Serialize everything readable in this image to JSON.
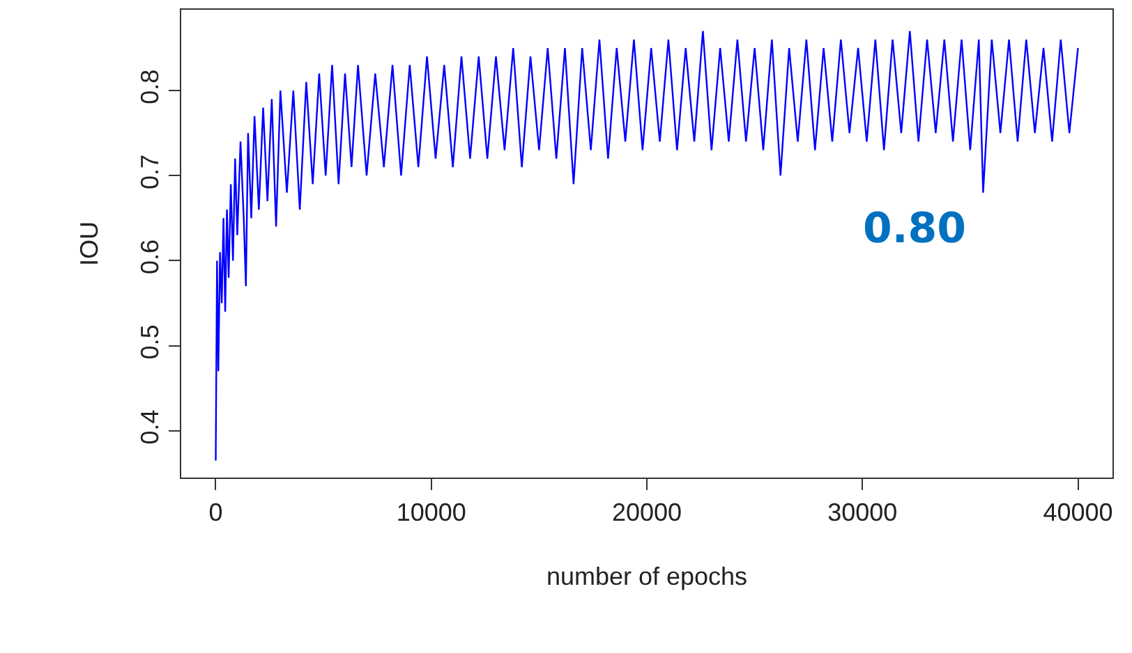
{
  "chart_data": {
    "type": "line",
    "xlabel": "number of epochs",
    "ylabel": "IOU",
    "annotations": [
      "0.80"
    ],
    "xlim": [
      -1600,
      41600
    ],
    "ylim": [
      0.345,
      0.895
    ],
    "xticks": [
      0,
      10000,
      20000,
      30000,
      40000
    ],
    "yticks": [
      0.4,
      0.5,
      0.6,
      0.7,
      0.8
    ],
    "line_style": "solid",
    "x": [
      0,
      60,
      120,
      200,
      280,
      360,
      440,
      520,
      600,
      700,
      800,
      900,
      1000,
      1150,
      1300,
      1400,
      1500,
      1650,
      1800,
      2000,
      2200,
      2400,
      2600,
      2800,
      3000,
      3300,
      3600,
      3900,
      4200,
      4500,
      4800,
      5100,
      5400,
      5700,
      6000,
      6300,
      6600,
      7000,
      7400,
      7800,
      8200,
      8600,
      9000,
      9400,
      9800,
      10200,
      10600,
      11000,
      11400,
      11800,
      12200,
      12600,
      13000,
      13400,
      13800,
      14200,
      14600,
      15000,
      15400,
      15800,
      16200,
      16600,
      17000,
      17400,
      17800,
      18200,
      18600,
      19000,
      19400,
      19800,
      20200,
      20600,
      21000,
      21400,
      21800,
      22200,
      22600,
      23000,
      23400,
      23800,
      24200,
      24600,
      25000,
      25400,
      25800,
      26200,
      26600,
      27000,
      27400,
      27800,
      28200,
      28600,
      29000,
      29400,
      29800,
      30200,
      30600,
      31000,
      31400,
      31800,
      32200,
      32600,
      33000,
      33400,
      33800,
      34200,
      34600,
      35000,
      35400,
      35600,
      36000,
      36400,
      36800,
      37200,
      37600,
      38000,
      38400,
      38800,
      39200,
      39600,
      40000
    ],
    "series": [
      {
        "color": "#0000ff",
        "values": [
          0.365,
          0.6,
          0.47,
          0.61,
          0.55,
          0.65,
          0.54,
          0.66,
          0.58,
          0.69,
          0.6,
          0.72,
          0.63,
          0.74,
          0.65,
          0.57,
          0.75,
          0.65,
          0.77,
          0.66,
          0.78,
          0.67,
          0.79,
          0.64,
          0.8,
          0.68,
          0.8,
          0.66,
          0.81,
          0.69,
          0.82,
          0.7,
          0.83,
          0.69,
          0.82,
          0.71,
          0.83,
          0.7,
          0.82,
          0.71,
          0.83,
          0.7,
          0.83,
          0.71,
          0.84,
          0.72,
          0.83,
          0.71,
          0.84,
          0.72,
          0.84,
          0.72,
          0.84,
          0.73,
          0.85,
          0.71,
          0.84,
          0.73,
          0.85,
          0.72,
          0.85,
          0.69,
          0.85,
          0.73,
          0.86,
          0.72,
          0.85,
          0.74,
          0.86,
          0.73,
          0.85,
          0.74,
          0.86,
          0.73,
          0.85,
          0.74,
          0.87,
          0.73,
          0.85,
          0.74,
          0.86,
          0.74,
          0.85,
          0.73,
          0.86,
          0.7,
          0.85,
          0.74,
          0.86,
          0.73,
          0.85,
          0.74,
          0.86,
          0.75,
          0.85,
          0.74,
          0.86,
          0.73,
          0.86,
          0.75,
          0.87,
          0.74,
          0.86,
          0.75,
          0.86,
          0.74,
          0.86,
          0.73,
          0.86,
          0.68,
          0.86,
          0.75,
          0.86,
          0.74,
          0.86,
          0.75,
          0.85,
          0.74,
          0.86,
          0.75,
          0.85
        ]
      }
    ]
  }
}
